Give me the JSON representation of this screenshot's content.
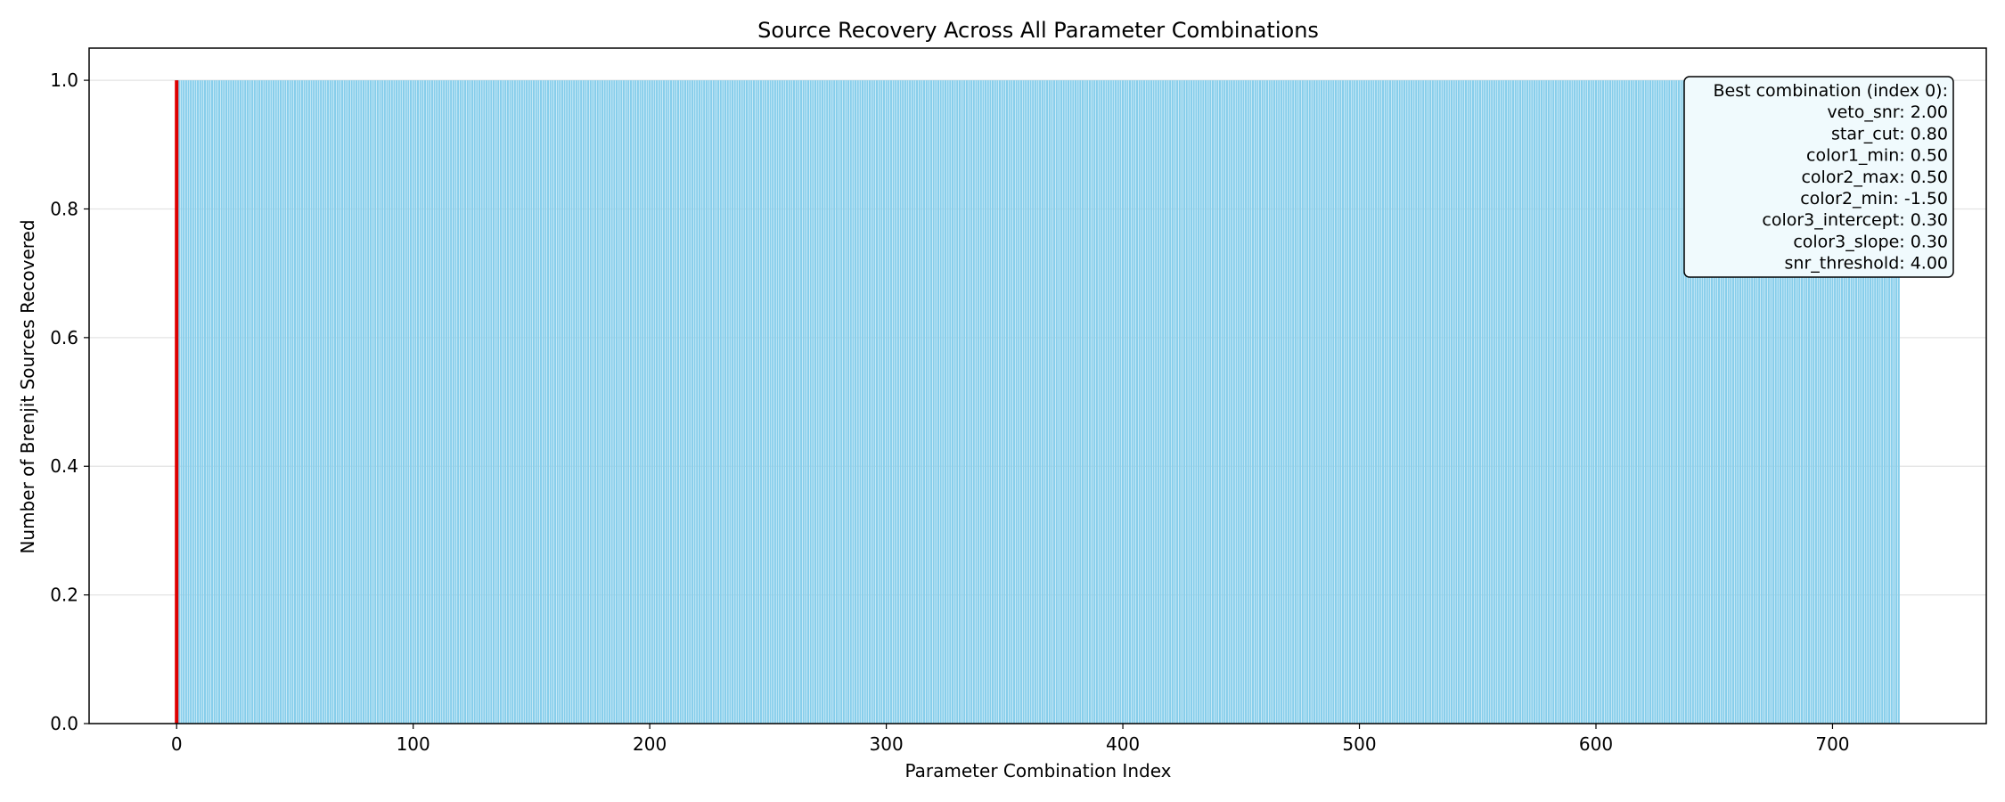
{
  "chart_data": {
    "type": "bar",
    "title": "Source Recovery Across All Parameter Combinations",
    "xlabel": "Parameter Combination Index",
    "ylabel": "Number of Brenjit Sources Recovered",
    "xlim": [
      -37,
      765
    ],
    "ylim": [
      0,
      1.05
    ],
    "x_ticks": [
      0,
      100,
      200,
      300,
      400,
      500,
      600,
      700
    ],
    "y_ticks": [
      0.0,
      0.2,
      0.4,
      0.6,
      0.8,
      1.0
    ],
    "y_tick_labels": [
      "0.0",
      "0.2",
      "0.4",
      "0.6",
      "0.8",
      "1.0"
    ],
    "x_tick_labels": [
      "0",
      "100",
      "200",
      "300",
      "400",
      "500",
      "600",
      "700"
    ],
    "bars": {
      "x_start": 0,
      "count": 729,
      "value": 1.0
    },
    "bar_color": "#87ceeb",
    "highlight": {
      "index": 0,
      "value": 1.0,
      "color": "#dd0000"
    },
    "grid": "y",
    "annotation": {
      "position": "top-right",
      "lines": [
        "Best combination (index 0):",
        "veto_snr: 2.00",
        "star_cut: 0.80",
        "color1_min: 0.50",
        "color2_max: 0.50",
        "color2_min: -1.50",
        "color3_intercept: 0.30",
        "color3_slope: 0.30",
        "snr_threshold: 4.00"
      ]
    }
  }
}
